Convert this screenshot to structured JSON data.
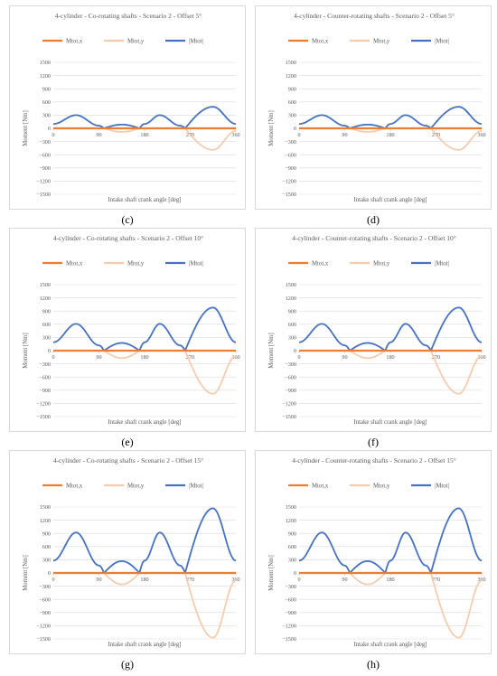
{
  "colors": {
    "mx": "#ed7d31",
    "my": "#f8cbad",
    "mabs": "#4472c4",
    "grid": "#d9d9d9"
  },
  "chart_data": [
    {
      "id": "c",
      "type": "line",
      "caption": "(c)",
      "title": "4-cylinder - Co-rotating shafts - Scenario 2 - Offset 5°",
      "xlabel": "Intake shaft crank angle [deg]",
      "ylabel": "Moment [Nm]",
      "xlim": [
        0,
        360
      ],
      "ylim": [
        -1500,
        1500
      ],
      "xticks": [
        0,
        90,
        180,
        270,
        360
      ],
      "yticks": [
        1500,
        1200,
        900,
        600,
        300,
        0,
        -300,
        -600,
        -900,
        -1200,
        -1500
      ],
      "legend_position": "top",
      "x": [
        0,
        45,
        90,
        100,
        135,
        170,
        180,
        210,
        250,
        260,
        315,
        360
      ],
      "series": [
        {
          "name": "Mtot,x",
          "values": [
            0,
            0,
            0,
            0,
            0,
            0,
            0,
            0,
            0,
            0,
            0,
            0
          ]
        },
        {
          "name": "Mtot,y",
          "values": [
            0,
            0,
            0,
            0,
            -80,
            0,
            0,
            0,
            0,
            0,
            -490,
            -60
          ]
        },
        {
          "name": "|Mtot|",
          "values": [
            100,
            300,
            60,
            0,
            85,
            0,
            100,
            300,
            60,
            0,
            490,
            100
          ]
        }
      ]
    },
    {
      "id": "d",
      "type": "line",
      "caption": "(d)",
      "title": "4-cylinder - Counter-rotating shafts - Scenario 2 - Offset 5°",
      "xlabel": "Intake shaft crank angle [deg]",
      "ylabel": "Moment [Nm]",
      "xlim": [
        0,
        360
      ],
      "ylim": [
        -1500,
        1500
      ],
      "xticks": [
        0,
        90,
        180,
        270,
        360
      ],
      "yticks": [
        1500,
        1200,
        900,
        600,
        300,
        0,
        -300,
        -600,
        -900,
        -1200,
        -1500
      ],
      "legend_position": "top",
      "x": [
        0,
        45,
        90,
        100,
        135,
        170,
        180,
        210,
        250,
        260,
        315,
        360
      ],
      "series": [
        {
          "name": "Mtot,x",
          "values": [
            0,
            0,
            0,
            0,
            0,
            0,
            0,
            0,
            0,
            0,
            0,
            0
          ]
        },
        {
          "name": "Mtot,y",
          "values": [
            0,
            0,
            0,
            0,
            -80,
            0,
            0,
            0,
            0,
            0,
            -490,
            -60
          ]
        },
        {
          "name": "|Mtot|",
          "values": [
            100,
            300,
            60,
            0,
            85,
            0,
            100,
            300,
            60,
            0,
            490,
            100
          ]
        }
      ]
    },
    {
      "id": "e",
      "type": "line",
      "caption": "(e)",
      "title": "4-cylinder - Co-rotating shafts - Scenario 2 - Offset 10°",
      "xlabel": "Intake shaft crank angle [deg]",
      "ylabel": "Moment [Nm]",
      "xlim": [
        0,
        360
      ],
      "ylim": [
        -1500,
        1500
      ],
      "xticks": [
        0,
        90,
        180,
        270,
        360
      ],
      "yticks": [
        1500,
        1200,
        900,
        600,
        300,
        0,
        -300,
        -600,
        -900,
        -1200,
        -1500
      ],
      "legend_position": "top",
      "x": [
        0,
        45,
        90,
        100,
        135,
        170,
        180,
        210,
        250,
        260,
        315,
        360
      ],
      "series": [
        {
          "name": "Mtot,x",
          "values": [
            0,
            0,
            0,
            0,
            0,
            0,
            0,
            0,
            0,
            0,
            0,
            0
          ]
        },
        {
          "name": "Mtot,y",
          "values": [
            0,
            0,
            0,
            0,
            -170,
            0,
            0,
            0,
            0,
            0,
            -980,
            -120
          ]
        },
        {
          "name": "|Mtot|",
          "values": [
            190,
            610,
            120,
            0,
            175,
            0,
            190,
            610,
            120,
            0,
            980,
            190
          ]
        }
      ]
    },
    {
      "id": "f",
      "type": "line",
      "caption": "(f)",
      "title": "4-cylinder - Counter-rotating shafts - Scenario 2 - Offset 10°",
      "xlabel": "Intake shaft crank angle [deg]",
      "ylabel": "Moment [Nm]",
      "xlim": [
        0,
        360
      ],
      "ylim": [
        -1500,
        1500
      ],
      "xticks": [
        0,
        90,
        180,
        270,
        360
      ],
      "yticks": [
        1500,
        1200,
        900,
        600,
        300,
        0,
        -300,
        -600,
        -900,
        -1200,
        -1500
      ],
      "legend_position": "top",
      "x": [
        0,
        45,
        90,
        100,
        135,
        170,
        180,
        210,
        250,
        260,
        315,
        360
      ],
      "series": [
        {
          "name": "Mtot,x",
          "values": [
            0,
            0,
            0,
            0,
            0,
            0,
            0,
            0,
            0,
            0,
            0,
            0
          ]
        },
        {
          "name": "Mtot,y",
          "values": [
            0,
            0,
            0,
            0,
            -170,
            0,
            0,
            0,
            0,
            0,
            -980,
            -120
          ]
        },
        {
          "name": "|Mtot|",
          "values": [
            190,
            610,
            120,
            0,
            175,
            0,
            190,
            610,
            120,
            0,
            980,
            190
          ]
        }
      ]
    },
    {
      "id": "g",
      "type": "line",
      "caption": "(g)",
      "title": "4-cylinder - Co-rotating shafts - Scenario 2 - Offset 15°",
      "xlabel": "Intake shaft crank angle [deg]",
      "ylabel": "Moment [Nm]",
      "xlim": [
        0,
        360
      ],
      "ylim": [
        -1500,
        1500
      ],
      "xticks": [
        0,
        90,
        180,
        270,
        360
      ],
      "yticks": [
        1500,
        1200,
        900,
        600,
        300,
        0,
        -300,
        -600,
        -900,
        -1200,
        -1500
      ],
      "legend_position": "top",
      "x": [
        0,
        45,
        90,
        100,
        135,
        170,
        180,
        210,
        250,
        260,
        315,
        360
      ],
      "series": [
        {
          "name": "Mtot,x",
          "values": [
            0,
            0,
            0,
            0,
            0,
            0,
            0,
            0,
            0,
            0,
            0,
            0
          ]
        },
        {
          "name": "Mtot,y",
          "values": [
            0,
            0,
            0,
            0,
            -260,
            0,
            0,
            0,
            0,
            0,
            -1470,
            -170
          ]
        },
        {
          "name": "|Mtot|",
          "values": [
            280,
            920,
            170,
            0,
            270,
            0,
            280,
            920,
            170,
            0,
            1470,
            280
          ]
        }
      ]
    },
    {
      "id": "h",
      "type": "line",
      "caption": "(h)",
      "title": "4-cylinder - Counter-rotating shafts - Scenario 2 - Offset 15°",
      "xlabel": "Intake shaft crank angle [deg]",
      "ylabel": "Moment [Nm]",
      "xlim": [
        0,
        360
      ],
      "ylim": [
        -1500,
        1500
      ],
      "xticks": [
        0,
        90,
        180,
        270,
        360
      ],
      "yticks": [
        1500,
        1200,
        900,
        600,
        300,
        0,
        -300,
        -600,
        -900,
        -1200,
        -1500
      ],
      "legend_position": "top",
      "x": [
        0,
        45,
        90,
        100,
        135,
        170,
        180,
        210,
        250,
        260,
        315,
        360
      ],
      "series": [
        {
          "name": "Mtot,x",
          "values": [
            0,
            0,
            0,
            0,
            0,
            0,
            0,
            0,
            0,
            0,
            0,
            0
          ]
        },
        {
          "name": "Mtot,y",
          "values": [
            0,
            0,
            0,
            0,
            -260,
            0,
            0,
            0,
            0,
            0,
            -1470,
            -170
          ]
        },
        {
          "name": "|Mtot|",
          "values": [
            280,
            920,
            170,
            0,
            270,
            0,
            280,
            920,
            170,
            0,
            1470,
            280
          ]
        }
      ]
    }
  ]
}
